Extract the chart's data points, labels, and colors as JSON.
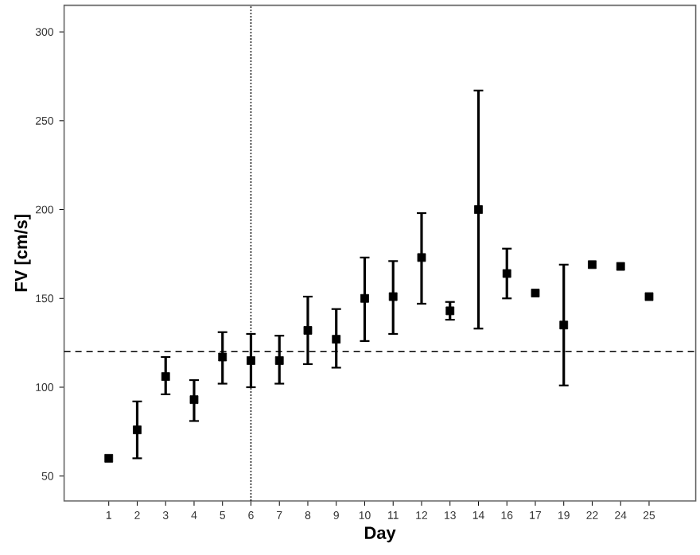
{
  "chart_data": {
    "type": "scatter",
    "xlabel": "Day",
    "ylabel": "FV [cm/s]",
    "categories": [
      "1",
      "2",
      "3",
      "4",
      "5",
      "6",
      "7",
      "8",
      "9",
      "10",
      "11",
      "12",
      "13",
      "14",
      "16",
      "17",
      "19",
      "22",
      "24",
      "25"
    ],
    "values": [
      60,
      76,
      106,
      93,
      117,
      115,
      115,
      132,
      127,
      150,
      151,
      173,
      143,
      200,
      164,
      153,
      135,
      169,
      168,
      151
    ],
    "errors": [
      null,
      [
        60,
        92
      ],
      [
        96,
        117
      ],
      [
        81,
        104
      ],
      [
        102,
        131
      ],
      [
        100,
        130
      ],
      [
        102,
        129
      ],
      [
        113,
        151
      ],
      [
        111,
        144
      ],
      [
        126,
        173
      ],
      [
        130,
        171
      ],
      [
        147,
        198
      ],
      [
        138,
        148
      ],
      [
        133,
        267
      ],
      [
        150,
        178
      ],
      null,
      [
        101,
        169
      ],
      null,
      null,
      null
    ],
    "color": "#000000",
    "marker": "square",
    "ylim": [
      36,
      315
    ],
    "yticks": [
      50,
      100,
      150,
      200,
      250,
      300
    ],
    "grid": false,
    "ref_lines": [
      {
        "axis": "y",
        "value": 120,
        "line_style": "dashed"
      },
      {
        "axis": "x",
        "value": "6",
        "line_style": "dotted"
      }
    ]
  }
}
